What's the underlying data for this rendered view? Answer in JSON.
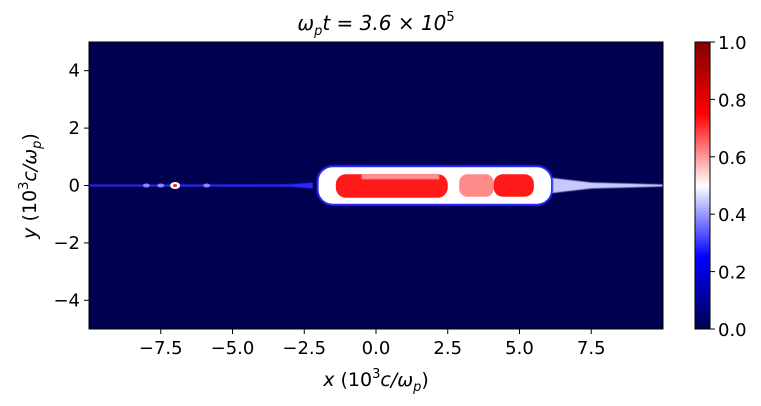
{
  "chart_data": {
    "type": "heatmap",
    "title_parts": {
      "w": "ω",
      "p": "p",
      "t": "t = 3.6 × 10",
      "exp": "5"
    },
    "xlabel_parts": {
      "var": "x",
      "open": " (10",
      "exp": "3",
      "mid": "c/ω",
      "sub": "p",
      "close": ")"
    },
    "ylabel_parts": {
      "var": "y",
      "open": " (10",
      "exp": "3",
      "mid": "c/ω",
      "sub": "p",
      "close": ")"
    },
    "xlim": [
      -10,
      10
    ],
    "ylim": [
      -5,
      5
    ],
    "x_ticks": [
      -7.5,
      -5.0,
      -2.5,
      0.0,
      2.5,
      5.0,
      7.5
    ],
    "x_tick_labels": [
      "−7.5",
      "−5.0",
      "−2.5",
      "0.0",
      "2.5",
      "5.0",
      "7.5"
    ],
    "y_ticks": [
      4,
      2,
      0,
      -2,
      -4
    ],
    "y_tick_labels": [
      "4",
      "2",
      "0",
      "−2",
      "−4"
    ],
    "colorbar": {
      "range": [
        0,
        1
      ],
      "ticks": [
        1.0,
        0.8,
        0.6,
        0.4,
        0.2,
        0.0
      ],
      "tick_labels": [
        "1.0",
        "0.8",
        "0.6",
        "0.4",
        "0.2",
        "0.0"
      ],
      "colormap": "seismic"
    },
    "grid": false,
    "features": {
      "filament": {
        "x_range": [
          -10,
          10
        ],
        "y": 0,
        "value": 0.2
      },
      "main_blob": {
        "x_range": [
          -2.0,
          6.1
        ],
        "y_range": [
          -0.6,
          0.6
        ],
        "value": 0.85
      },
      "small_blobs": [
        {
          "x": -7.0,
          "y": 0,
          "value": 0.8
        },
        {
          "x": -7.5,
          "y": 0,
          "value": 0.5
        },
        {
          "x": -8.0,
          "y": 0,
          "value": 0.4
        },
        {
          "x": -5.9,
          "y": 0,
          "value": 0.5
        }
      ]
    }
  },
  "colors": {
    "background": "#000050",
    "white": "#ffffff",
    "red": "#ff1a1a",
    "blue": "#2b2bff"
  }
}
